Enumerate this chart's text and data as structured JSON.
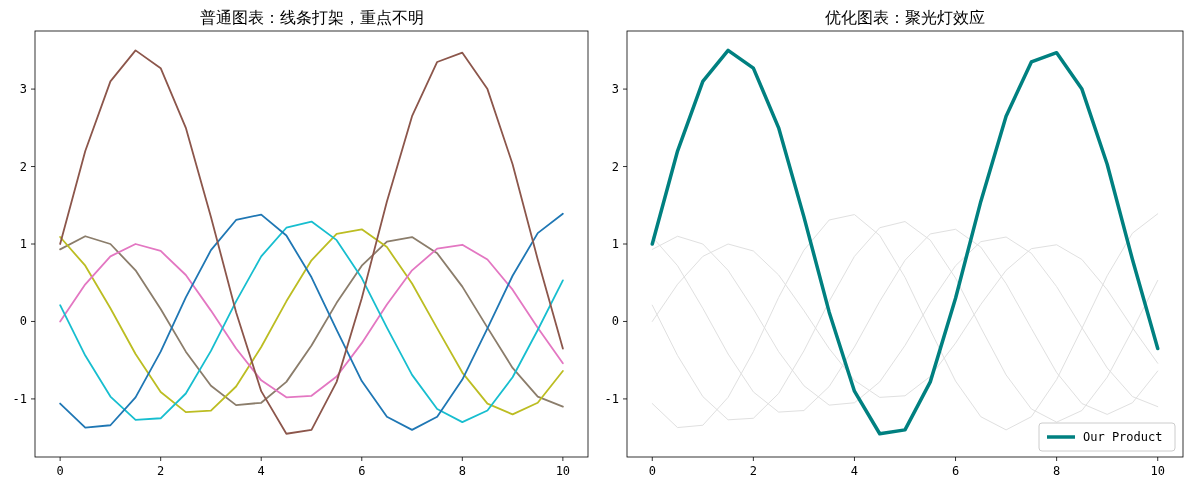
{
  "chart_data": [
    {
      "type": "line",
      "title": "普通图表：线条打架，重点不明",
      "x": [
        0,
        0.5,
        1,
        1.5,
        2,
        2.5,
        3,
        3.5,
        4,
        4.5,
        5,
        5.5,
        6,
        6.5,
        7,
        7.5,
        8,
        8.5,
        9,
        9.5,
        10
      ],
      "xlim": [
        -0.5,
        10.5
      ],
      "ylim": [
        -1.75,
        3.75
      ],
      "xticks": [
        0,
        2,
        4,
        6,
        8,
        10
      ],
      "yticks": [
        -1,
        0,
        1,
        2,
        3
      ],
      "legend": false,
      "series": [
        {
          "color": "#8b7d6b",
          "values": [
            0.93,
            1.1,
            1.0,
            0.66,
            0.16,
            -0.39,
            -0.83,
            -1.08,
            -1.05,
            -0.78,
            -0.31,
            0.24,
            0.72,
            1.03,
            1.09,
            0.88,
            0.45,
            -0.08,
            -0.6,
            -0.97,
            -1.1
          ]
        },
        {
          "color": "#bcbd22",
          "values": [
            1.09,
            0.72,
            0.17,
            -0.42,
            -0.91,
            -1.17,
            -1.15,
            -0.84,
            -0.33,
            0.26,
            0.79,
            1.13,
            1.19,
            0.96,
            0.49,
            -0.09,
            -0.66,
            -1.06,
            -1.2,
            -1.05,
            -0.64
          ]
        },
        {
          "color": "#e377c2",
          "values": [
            0,
            0.48,
            0.84,
            1.0,
            0.91,
            0.6,
            0.14,
            -0.35,
            -0.76,
            -0.98,
            -0.96,
            -0.71,
            -0.28,
            0.22,
            0.66,
            0.94,
            0.99,
            0.8,
            0.41,
            -0.08,
            -0.54
          ]
        },
        {
          "color": "#17becf",
          "values": [
            0.21,
            -0.44,
            -0.97,
            -1.27,
            -1.25,
            -0.93,
            -0.38,
            0.26,
            0.84,
            1.21,
            1.29,
            1.05,
            0.56,
            -0.08,
            -0.69,
            -1.13,
            -1.3,
            -1.15,
            -0.72,
            -0.11,
            0.53
          ]
        },
        {
          "color": "#1f77b4",
          "values": [
            -1.06,
            -1.37,
            -1.34,
            -0.98,
            -0.39,
            0.31,
            0.92,
            1.31,
            1.38,
            1.11,
            0.57,
            -0.11,
            -0.77,
            -1.23,
            -1.4,
            -1.23,
            -0.75,
            -0.09,
            0.59,
            1.14,
            1.39
          ]
        },
        {
          "color": "#8c564b",
          "values": [
            1,
            2.2,
            3.1,
            3.5,
            3.27,
            2.5,
            1.35,
            0.12,
            -0.9,
            -1.45,
            -1.4,
            -0.78,
            0.3,
            1.55,
            2.65,
            3.35,
            3.47,
            3.0,
            2.03,
            0.8,
            -0.35
          ]
        }
      ]
    },
    {
      "type": "line",
      "title": "优化图表：聚光灯效应",
      "x": [
        0,
        0.5,
        1,
        1.5,
        2,
        2.5,
        3,
        3.5,
        4,
        4.5,
        5,
        5.5,
        6,
        6.5,
        7,
        7.5,
        8,
        8.5,
        9,
        9.5,
        10
      ],
      "xlim": [
        -0.5,
        10.5
      ],
      "ylim": [
        -1.75,
        3.75
      ],
      "xticks": [
        0,
        2,
        4,
        6,
        8,
        10
      ],
      "yticks": [
        -1,
        0,
        1,
        2,
        3
      ],
      "legend": "bottom right",
      "series": [
        {
          "color": "#e0e0e0",
          "values": [
            0.93,
            1.1,
            1.0,
            0.66,
            0.16,
            -0.39,
            -0.83,
            -1.08,
            -1.05,
            -0.78,
            -0.31,
            0.24,
            0.72,
            1.03,
            1.09,
            0.88,
            0.45,
            -0.08,
            -0.6,
            -0.97,
            -1.1
          ]
        },
        {
          "color": "#e0e0e0",
          "values": [
            1.09,
            0.72,
            0.17,
            -0.42,
            -0.91,
            -1.17,
            -1.15,
            -0.84,
            -0.33,
            0.26,
            0.79,
            1.13,
            1.19,
            0.96,
            0.49,
            -0.09,
            -0.66,
            -1.06,
            -1.2,
            -1.05,
            -0.64
          ]
        },
        {
          "color": "#e0e0e0",
          "values": [
            0,
            0.48,
            0.84,
            1.0,
            0.91,
            0.6,
            0.14,
            -0.35,
            -0.76,
            -0.98,
            -0.96,
            -0.71,
            -0.28,
            0.22,
            0.66,
            0.94,
            0.99,
            0.8,
            0.41,
            -0.08,
            -0.54
          ]
        },
        {
          "color": "#e0e0e0",
          "values": [
            0.21,
            -0.44,
            -0.97,
            -1.27,
            -1.25,
            -0.93,
            -0.38,
            0.26,
            0.84,
            1.21,
            1.29,
            1.05,
            0.56,
            -0.08,
            -0.69,
            -1.13,
            -1.3,
            -1.15,
            -0.72,
            -0.11,
            0.53
          ]
        },
        {
          "color": "#e0e0e0",
          "values": [
            -1.06,
            -1.37,
            -1.34,
            -0.98,
            -0.39,
            0.31,
            0.92,
            1.31,
            1.38,
            1.11,
            0.57,
            -0.11,
            -0.77,
            -1.23,
            -1.4,
            -1.23,
            -0.75,
            -0.09,
            0.59,
            1.14,
            1.39
          ]
        },
        {
          "name": "Our Product",
          "color": "#008080",
          "values": [
            1,
            2.2,
            3.1,
            3.5,
            3.27,
            2.5,
            1.35,
            0.12,
            -0.9,
            -1.45,
            -1.4,
            -0.78,
            0.3,
            1.55,
            2.65,
            3.35,
            3.47,
            3.0,
            2.03,
            0.8,
            -0.35
          ]
        }
      ]
    }
  ]
}
